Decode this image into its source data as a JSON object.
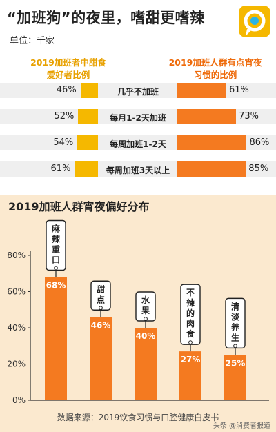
{
  "header": {
    "title": "“加班狗”的夜里，嗜甜更嗜辣",
    "unit": "单位：千家"
  },
  "left_column": {
    "heading": "2019加班者中甜食\n爱好者比例",
    "color": "#f5b800"
  },
  "right_column": {
    "heading": "2019加班人群有点宵夜\n习惯的比例",
    "color": "#f47a20"
  },
  "comparison_rows": [
    {
      "category": "几乎不加班",
      "left": 46,
      "left_label": "46%",
      "right": 61,
      "right_label": "61%"
    },
    {
      "category": "每月1-2天加班",
      "left": 52,
      "left_label": "52%",
      "right": 73,
      "right_label": "73%"
    },
    {
      "category": "每周加班1-2天",
      "left": 54,
      "left_label": "54%",
      "right": 86,
      "right_label": "86%"
    },
    {
      "category": "每周加班3天以上",
      "left": 61,
      "left_label": "61%",
      "right": 85,
      "right_label": "85%"
    }
  ],
  "section2": {
    "title": "2019加班人群宵夜偏好分布"
  },
  "chart_data": {
    "type": "bar",
    "title": "2019加班人群宵夜偏好分布",
    "categories": [
      "麻辣重口",
      "甜点",
      "水果",
      "不辣的肉食",
      "清淡养生"
    ],
    "values": [
      68,
      46,
      40,
      27,
      25
    ],
    "value_labels": [
      "68%",
      "46%",
      "40%",
      "27%",
      "25%"
    ],
    "yticks": [
      "0%",
      "20%",
      "40%",
      "60%",
      "80%"
    ],
    "ylim": [
      0,
      80
    ],
    "bar_color": "#f47a20",
    "grid": false
  },
  "footer": {
    "source": "数据来源：2019饮食习惯与口腔健康白皮书",
    "watermark": "头条 @消费者报道"
  }
}
